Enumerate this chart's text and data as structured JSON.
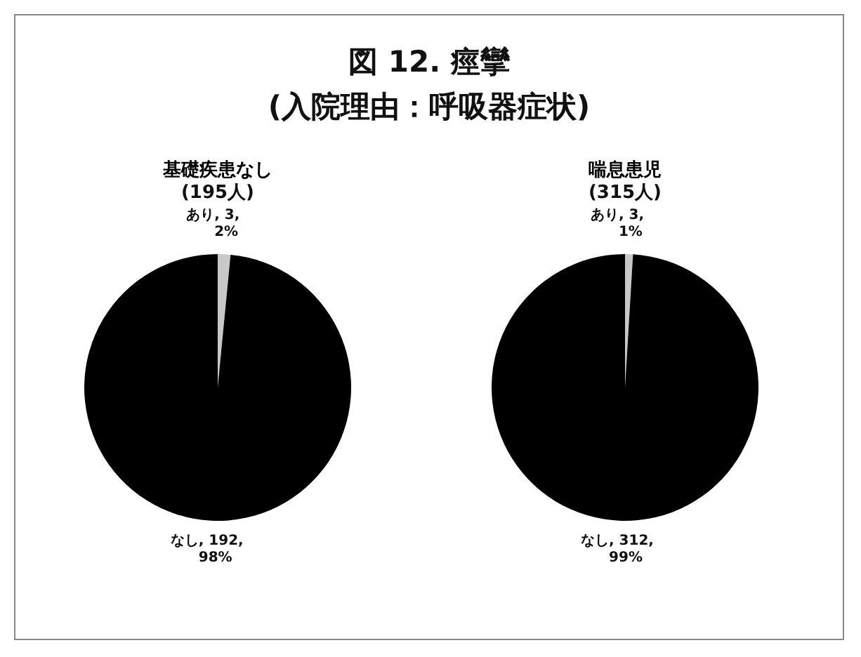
{
  "chart_data": [
    {
      "type": "pie",
      "title": "基礎疾患なし",
      "subtitle": "(195人)",
      "annotations": [
        "図 12. 痙攣",
        "(入院理由：呼吸器症状)"
      ],
      "categories": [
        "あり",
        "なし"
      ],
      "values": [
        3,
        192
      ],
      "colors": [
        "#c8c8c8",
        "#000000"
      ],
      "value_labels": [
        ", 3, 2%",
        ", 192, 98%"
      ],
      "legend": false
    },
    {
      "type": "pie",
      "title": "喘息患児",
      "subtitle": "(315人)",
      "categories": [
        "あり",
        "なし"
      ],
      "values": [
        3,
        312
      ],
      "colors": [
        "#c8c8c8",
        "#000000"
      ],
      "value_labels": [
        ", 3, 1%",
        ", 312, 99%"
      ],
      "legend": false
    }
  ]
}
